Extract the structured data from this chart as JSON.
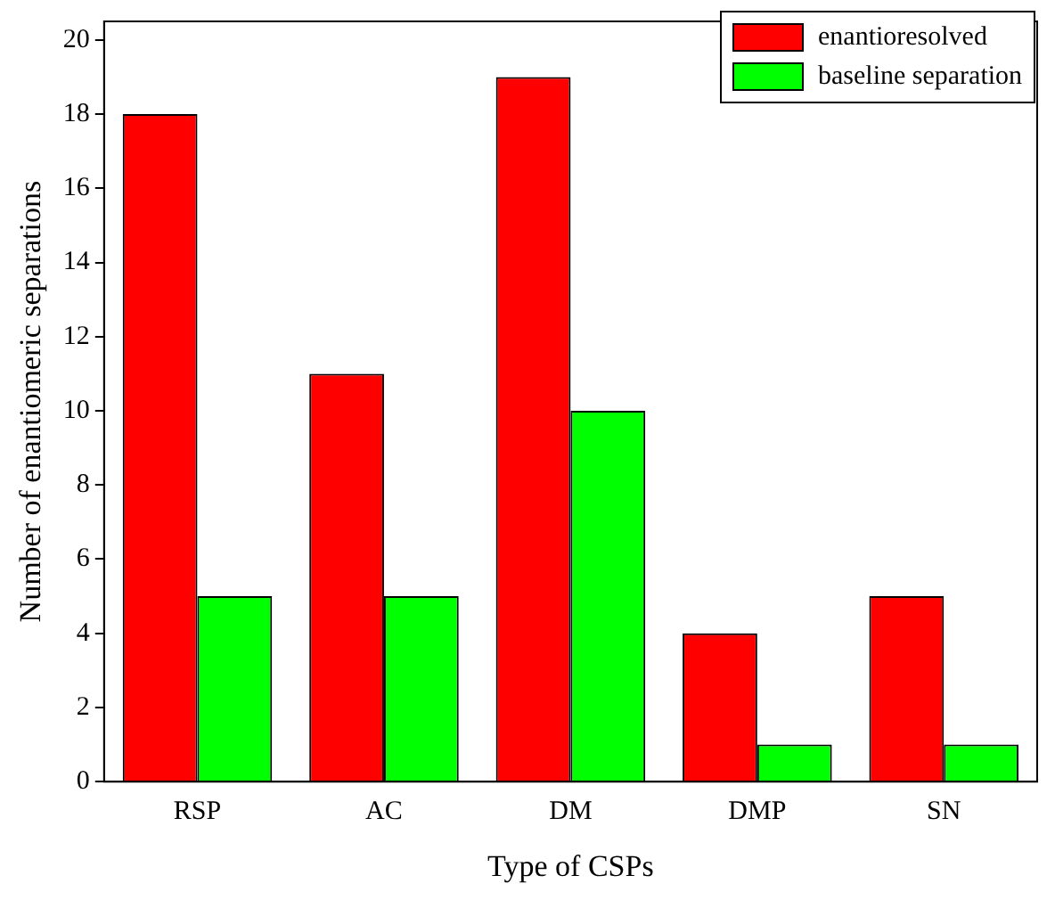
{
  "chart_data": {
    "type": "bar",
    "xlabel": "Type of CSPs",
    "ylabel": "Number of enantiomeric separations",
    "categories": [
      "RSP",
      "AC",
      "DM",
      "DMP",
      "SN"
    ],
    "series": [
      {
        "name": "enantioresolved",
        "color": "#ff0000",
        "values": [
          18,
          11,
          19,
          4,
          5
        ]
      },
      {
        "name": "baseline separation",
        "color": "#00ff00",
        "values": [
          5,
          5,
          10,
          1,
          1
        ]
      }
    ],
    "ylim": [
      0,
      20.5
    ],
    "yticks": [
      0,
      2,
      4,
      6,
      8,
      10,
      12,
      14,
      16,
      18,
      20
    ],
    "grid": false,
    "legend": "top right"
  }
}
